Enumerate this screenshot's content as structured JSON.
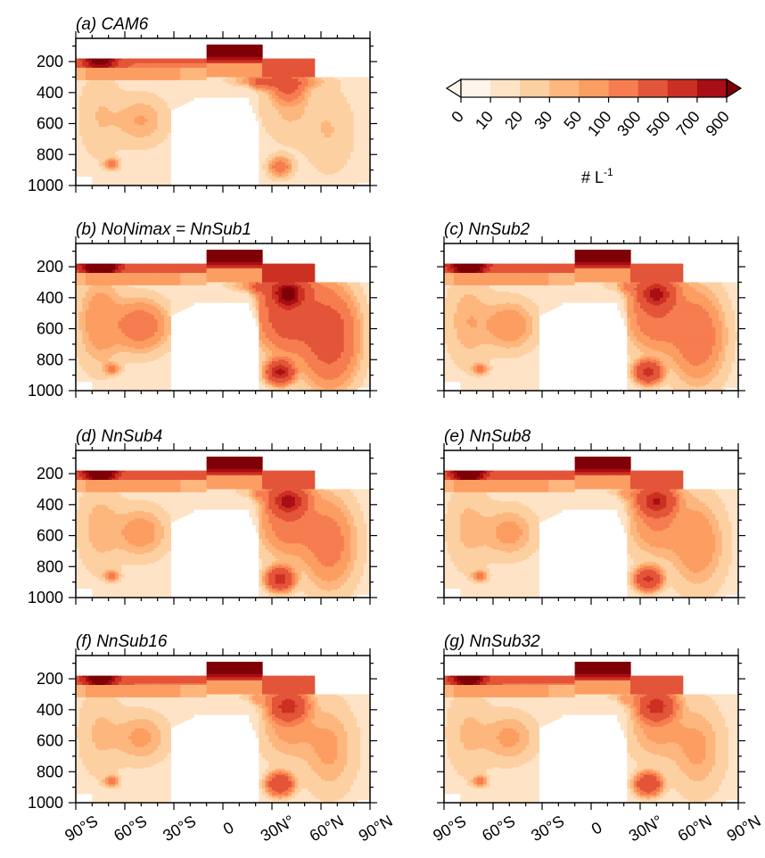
{
  "chart_data": {
    "type": "contour",
    "x_tick_labels": [
      "90°S",
      "60°S",
      "30°S",
      "0",
      "30N°",
      "60°N",
      "90°N"
    ],
    "y_tick_labels": [
      "200",
      "400",
      "600",
      "800",
      "1000"
    ],
    "xlim": [
      -90,
      90
    ],
    "ylim": [
      1000,
      50
    ],
    "y_reversed": true,
    "colorbar": {
      "label_main": "# L",
      "label_sup": "-1",
      "levels": [
        "0",
        "10",
        "20",
        "30",
        "50",
        "100",
        "300",
        "500",
        "700",
        "900"
      ],
      "colors": [
        "#fff5eb",
        "#fee3c6",
        "#fdd0a2",
        "#fdb67d",
        "#fc9d62",
        "#f67d50",
        "#e35539",
        "#cc3023",
        "#a90e14",
        "#7e0006"
      ],
      "extend": "both"
    },
    "panels": [
      {
        "title": "(a) CAM6",
        "profile": {
          "band": 500,
          "nhband": 300,
          "upperNH": 100,
          "maxNH": 100,
          "nhMid": 20,
          "shMid": 28
        }
      },
      {
        "title": "(b) NoNimax = NnSub1",
        "profile": {
          "band": 800,
          "nhband": 300,
          "upperNH": 300,
          "maxNH": 800,
          "nhMid": 220,
          "shMid": 80
        }
      },
      {
        "title": "(c) NnSub2",
        "profile": {
          "band": 700,
          "nhband": 120,
          "upperNH": 150,
          "maxNH": 550,
          "nhMid": 110,
          "shMid": 45
        }
      },
      {
        "title": "(d) NnSub4",
        "profile": {
          "band": 650,
          "nhband": 110,
          "upperNH": 150,
          "maxNH": 600,
          "nhMid": 90,
          "shMid": 40
        }
      },
      {
        "title": "(e) NnSub8",
        "profile": {
          "band": 650,
          "nhband": 80,
          "upperNH": 60,
          "maxNH": 500,
          "nhMid": 60,
          "shMid": 35
        }
      },
      {
        "title": "(f) NnSub16",
        "profile": {
          "band": 600,
          "nhband": 80,
          "upperNH": 60,
          "maxNH": 400,
          "nhMid": 40,
          "shMid": 32
        }
      },
      {
        "title": "(g) NnSub32",
        "profile": {
          "band": 600,
          "nhband": 80,
          "upperNH": 60,
          "maxNH": 400,
          "nhMid": 40,
          "shMid": 32
        }
      }
    ]
  }
}
